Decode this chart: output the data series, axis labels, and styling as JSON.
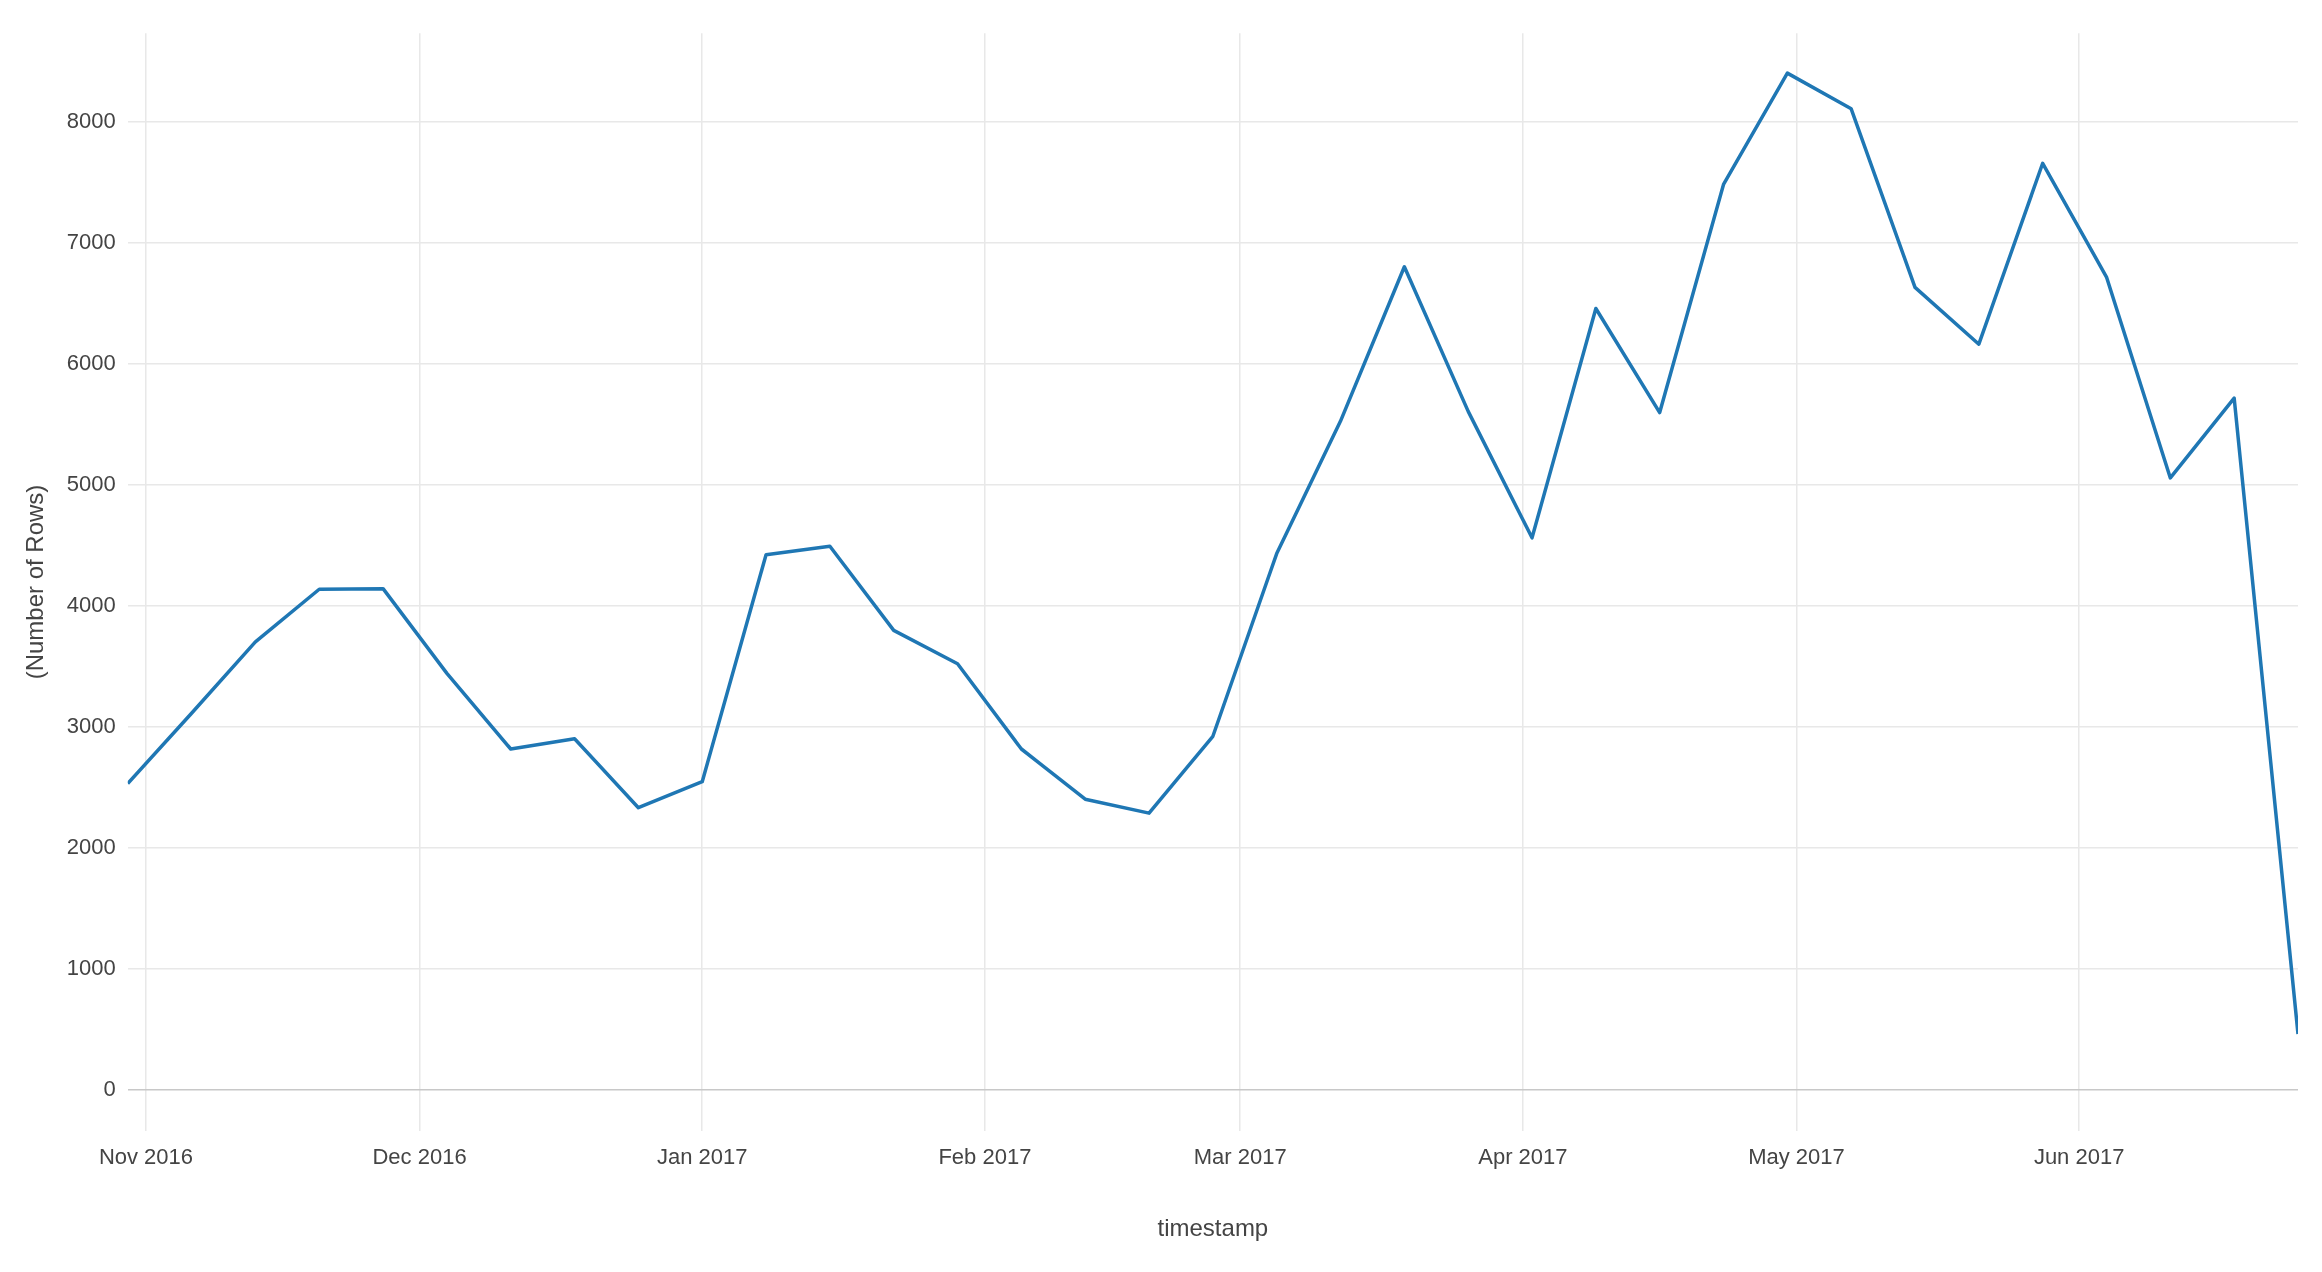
{
  "chart_data": {
    "type": "line",
    "xlabel": "timestamp",
    "ylabel": "(Number of Rows)",
    "x": [
      "2016-10-30",
      "2016-11-06",
      "2016-11-13",
      "2016-11-20",
      "2016-11-27",
      "2016-12-04",
      "2016-12-11",
      "2016-12-18",
      "2016-12-25",
      "2017-01-01",
      "2017-01-08",
      "2017-01-15",
      "2017-01-22",
      "2017-01-29",
      "2017-02-05",
      "2017-02-12",
      "2017-02-19",
      "2017-02-26",
      "2017-03-05",
      "2017-03-12",
      "2017-03-19",
      "2017-03-26",
      "2017-04-02",
      "2017-04-09",
      "2017-04-16",
      "2017-04-23",
      "2017-04-30",
      "2017-05-07",
      "2017-05-14",
      "2017-05-21",
      "2017-05-28",
      "2017-06-04",
      "2017-06-11",
      "2017-06-18",
      "2017-06-25"
    ],
    "series": [
      {
        "color": "#1f77b4",
        "values": [
          2530,
          3110,
          3700,
          4135,
          4140,
          3440,
          2815,
          2900,
          2330,
          2545,
          4420,
          4490,
          3795,
          3520,
          2815,
          2400,
          2285,
          2920,
          4430,
          5525,
          6800,
          5605,
          4560,
          6455,
          5595,
          7480,
          8400,
          8105,
          6630,
          6160,
          7655,
          6715,
          5055,
          5715,
          460
        ]
      }
    ],
    "xlim": [
      "2016-10-30",
      "2017-06-25"
    ],
    "xticks": [
      {
        "value": "2016-11",
        "label": "Nov 2016"
      },
      {
        "value": "2016-12",
        "label": "Dec 2016"
      },
      {
        "value": "2017-01",
        "label": "Jan 2017"
      },
      {
        "value": "2017-02",
        "label": "Feb 2017"
      },
      {
        "value": "2017-03",
        "label": "Mar 2017"
      },
      {
        "value": "2017-04",
        "label": "Apr 2017"
      },
      {
        "value": "2017-05",
        "label": "May 2017"
      },
      {
        "value": "2017-06",
        "label": "Jun 2017"
      }
    ],
    "ylim": [
      -340,
      8730
    ],
    "yticks": [
      0,
      1000,
      2000,
      3000,
      4000,
      5000,
      6000,
      7000,
      8000
    ],
    "grid": true,
    "legend": false,
    "marker": "none",
    "line_style": "solid"
  }
}
